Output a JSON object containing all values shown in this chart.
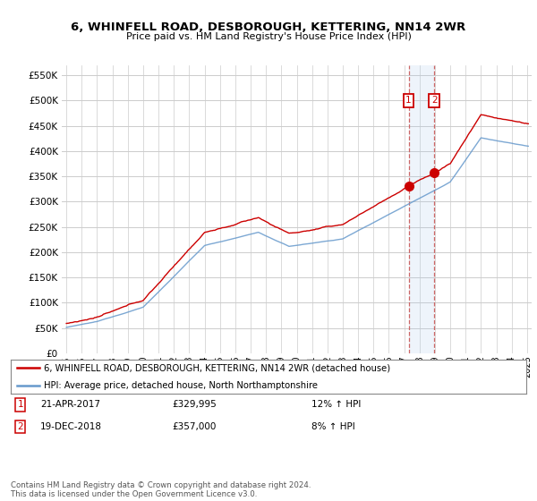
{
  "title": "6, WHINFELL ROAD, DESBOROUGH, KETTERING, NN14 2WR",
  "subtitle": "Price paid vs. HM Land Registry's House Price Index (HPI)",
  "legend_line1": "6, WHINFELL ROAD, DESBOROUGH, KETTERING, NN14 2WR (detached house)",
  "legend_line2": "HPI: Average price, detached house, North Northamptonshire",
  "transaction1_date": "21-APR-2017",
  "transaction1_price": "£329,995",
  "transaction1_hpi": "12% ↑ HPI",
  "transaction2_date": "19-DEC-2018",
  "transaction2_price": "£357,000",
  "transaction2_hpi": "8% ↑ HPI",
  "footnote": "Contains HM Land Registry data © Crown copyright and database right 2024.\nThis data is licensed under the Open Government Licence v3.0.",
  "red_color": "#cc0000",
  "blue_color": "#6699cc",
  "blue_fill_color": "#ddeeff",
  "grid_color": "#cccccc",
  "background_color": "#ffffff",
  "ylim": [
    0,
    570000
  ],
  "yticks": [
    0,
    50000,
    100000,
    150000,
    200000,
    250000,
    300000,
    350000,
    400000,
    450000,
    500000,
    550000
  ],
  "t1_year": 2017.29,
  "t1_price": 329995,
  "t2_year": 2018.96,
  "t2_price": 357000
}
